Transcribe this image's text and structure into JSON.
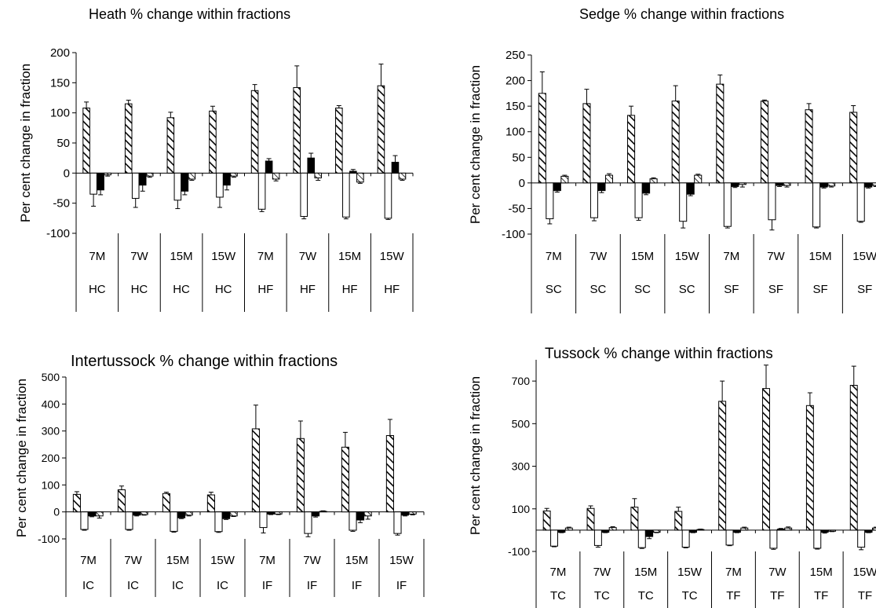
{
  "chart_data": [
    {
      "type": "bar",
      "title": "Heath % change within fractions",
      "ylabel": "Per cent change in fraction",
      "ylim": [
        -100,
        200
      ],
      "yticks": [
        -100,
        -50,
        0,
        50,
        100,
        150,
        200
      ],
      "categories": [
        "7M",
        "7W",
        "15M",
        "15W",
        "7M",
        "7W",
        "15M",
        "15W"
      ],
      "groups": [
        "HC",
        "HC",
        "HC",
        "HC",
        "HF",
        "HF",
        "HF",
        "HF"
      ],
      "series": [
        {
          "pattern": "diagonal-hatch",
          "values": [
            108,
            115,
            92,
            103,
            137,
            142,
            108,
            145
          ],
          "errors": [
            10,
            6,
            9,
            8,
            10,
            36,
            4,
            36
          ]
        },
        {
          "pattern": "open",
          "values": [
            -35,
            -42,
            -45,
            -40,
            -60,
            -72,
            -73,
            -75
          ],
          "errors": [
            20,
            15,
            14,
            17,
            4,
            4,
            3,
            2
          ]
        },
        {
          "pattern": "solid-black",
          "values": [
            -28,
            -20,
            -30,
            -20,
            20,
            25,
            3,
            18
          ],
          "errors": [
            8,
            10,
            6,
            8,
            4,
            8,
            3,
            11
          ]
        },
        {
          "pattern": "light-hatch",
          "values": [
            -3,
            -5,
            -10,
            -5,
            -10,
            -8,
            -15,
            -10
          ],
          "errors": [
            2,
            2,
            2,
            2,
            3,
            4,
            2,
            2
          ]
        }
      ]
    },
    {
      "type": "bar",
      "title": "Sedge % change within fractions",
      "ylabel": "Per cent change in fraction",
      "ylim": [
        -100,
        250
      ],
      "yticks": [
        -100,
        -50,
        0,
        50,
        100,
        150,
        200,
        250
      ],
      "categories": [
        "7M",
        "7W",
        "15M",
        "15W",
        "7M",
        "7W",
        "15M",
        "15W"
      ],
      "groups": [
        "SC",
        "SC",
        "SC",
        "SC",
        "SF",
        "SF",
        "SF",
        "SF"
      ],
      "series": [
        {
          "pattern": "diagonal-hatch",
          "values": [
            175,
            155,
            132,
            160,
            193,
            160,
            143,
            138
          ],
          "errors": [
            42,
            28,
            18,
            30,
            18,
            2,
            12,
            13
          ]
        },
        {
          "pattern": "open",
          "values": [
            -70,
            -68,
            -68,
            -75,
            -85,
            -72,
            -86,
            -75
          ],
          "errors": [
            10,
            6,
            5,
            13,
            3,
            20,
            2,
            2
          ]
        },
        {
          "pattern": "solid-black",
          "values": [
            -15,
            -15,
            -20,
            -22,
            -7,
            -5,
            -8,
            -8
          ],
          "errors": [
            3,
            4,
            3,
            3,
            2,
            2,
            2,
            2
          ]
        },
        {
          "pattern": "light-hatch",
          "values": [
            13,
            15,
            8,
            15,
            -3,
            -5,
            -6,
            -5
          ],
          "errors": [
            2,
            3,
            2,
            2,
            5,
            3,
            2,
            2
          ]
        }
      ]
    },
    {
      "type": "bar",
      "title": "Intertussock % change within fractions",
      "ylabel": "Per cent change in fraction",
      "ylim": [
        -100,
        500
      ],
      "yticks": [
        -100,
        0,
        100,
        200,
        300,
        400,
        500
      ],
      "categories": [
        "7M",
        "7W",
        "15M",
        "15W",
        "7M",
        "7W",
        "15M",
        "15W"
      ],
      "groups": [
        "IC",
        "IC",
        "IC",
        "IC",
        "IF",
        "IF",
        "IF",
        "IF"
      ],
      "series": [
        {
          "pattern": "diagonal-hatch",
          "values": [
            65,
            82,
            68,
            63,
            308,
            272,
            240,
            283
          ],
          "errors": [
            10,
            14,
            5,
            10,
            88,
            65,
            55,
            60
          ]
        },
        {
          "pattern": "open",
          "values": [
            -65,
            -65,
            -72,
            -73,
            -58,
            -80,
            -68,
            -80
          ],
          "errors": [
            3,
            3,
            3,
            3,
            20,
            12,
            4,
            6
          ]
        },
        {
          "pattern": "solid-black",
          "values": [
            -15,
            -12,
            -22,
            -25,
            -8,
            -15,
            -30,
            -12
          ],
          "errors": [
            3,
            3,
            3,
            3,
            2,
            4,
            10,
            3
          ]
        },
        {
          "pattern": "light-hatch",
          "values": [
            -15,
            -10,
            -12,
            -15,
            -8,
            2,
            -15,
            -8
          ],
          "errors": [
            8,
            2,
            3,
            2,
            2,
            2,
            12,
            3
          ]
        }
      ]
    },
    {
      "type": "bar",
      "title": "Tussock % change within fractions",
      "ylabel": "Per cent change in fraction",
      "ylim": [
        -100,
        800
      ],
      "yticks": [
        -100,
        100,
        300,
        500,
        700
      ],
      "categories": [
        "7M",
        "7W",
        "15M",
        "15W",
        "7M",
        "7W",
        "15M",
        "15W"
      ],
      "groups": [
        "TC",
        "TC",
        "TC",
        "TC",
        "TF",
        "TF",
        "TF",
        "TF"
      ],
      "series": [
        {
          "pattern": "diagonal-hatch",
          "values": [
            90,
            102,
            108,
            88,
            605,
            665,
            585,
            680
          ],
          "errors": [
            12,
            12,
            40,
            20,
            95,
            110,
            60,
            90
          ]
        },
        {
          "pattern": "open",
          "values": [
            -75,
            -72,
            -82,
            -80,
            -70,
            -85,
            -85,
            -80
          ],
          "errors": [
            3,
            8,
            4,
            3,
            3,
            5,
            4,
            12
          ]
        },
        {
          "pattern": "solid-black",
          "values": [
            -10,
            -10,
            -30,
            -10,
            -10,
            5,
            -10,
            -10
          ],
          "errors": [
            2,
            2,
            10,
            2,
            2,
            3,
            4,
            2
          ]
        },
        {
          "pattern": "light-hatch",
          "values": [
            10,
            12,
            -10,
            3,
            10,
            10,
            -5,
            10
          ],
          "errors": [
            4,
            4,
            2,
            2,
            4,
            5,
            2,
            4
          ]
        }
      ]
    }
  ]
}
